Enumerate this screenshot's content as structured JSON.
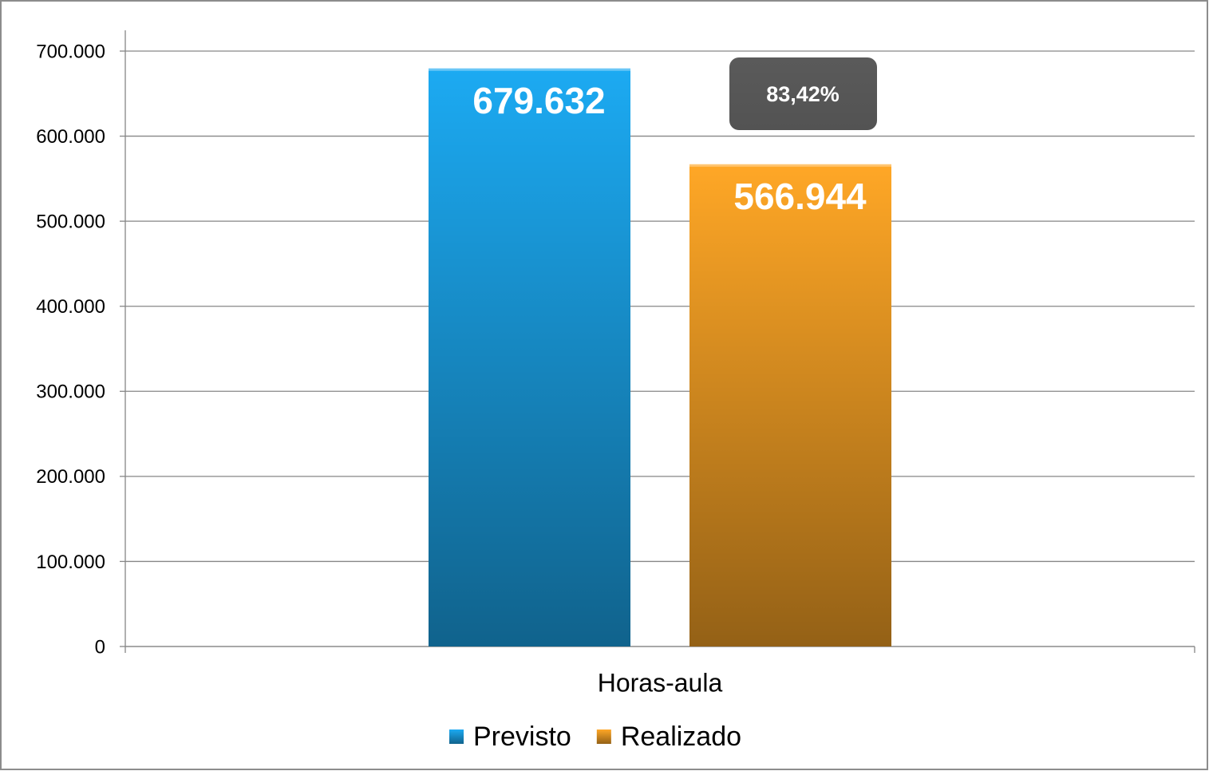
{
  "chart_data": {
    "type": "bar",
    "categories": [
      "Horas-aula"
    ],
    "series": [
      {
        "name": "Previsto",
        "color": "#1caaf2",
        "values": [
          679632
        ],
        "value_labels": [
          "679.632"
        ]
      },
      {
        "name": "Realizado",
        "color": "#ffa726",
        "values": [
          566944
        ],
        "value_labels": [
          "566.944"
        ]
      }
    ],
    "annotations": [
      "83,42%"
    ],
    "ylim": [
      0,
      700000
    ],
    "yticks": [
      0,
      {
        "value": 100000,
        "label": "100.000"
      },
      {
        "value": 200000,
        "label": "200.000"
      },
      {
        "value": 300000,
        "label": "300.000"
      },
      {
        "value": 400000,
        "label": "400.000"
      },
      {
        "value": 500000,
        "label": "500.000"
      },
      {
        "value": 600000,
        "label": "600.000"
      },
      {
        "value": 700000,
        "label": "700.000"
      }
    ],
    "grid": true,
    "legend": "bottom"
  }
}
